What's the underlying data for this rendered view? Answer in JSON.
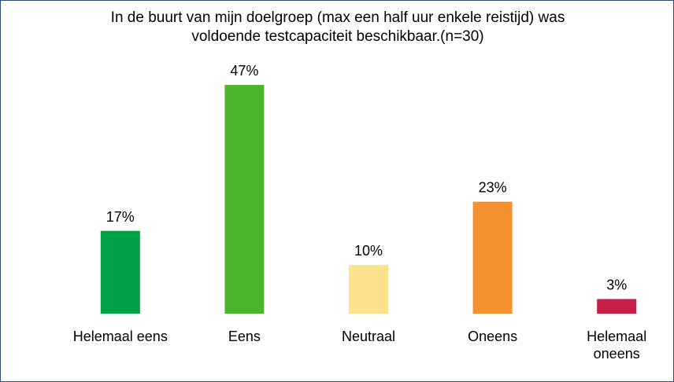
{
  "chart_data": {
    "type": "bar",
    "title": "In de buurt van mijn doelgroep (max een half uur enkele reistijd) was voldoende testcapaciteit beschikbaar.(n=30)",
    "categories": [
      "Helemaal eens",
      "Eens",
      "Neutraal",
      "Oneens",
      "Helemaal oneens"
    ],
    "values": [
      17,
      47,
      10,
      23,
      3
    ],
    "value_labels": [
      "17%",
      "47%",
      "10%",
      "23%",
      "3%"
    ],
    "colors": [
      "#00a046",
      "#4bb52d",
      "#fde28e",
      "#f5922f",
      "#c71d48"
    ]
  }
}
